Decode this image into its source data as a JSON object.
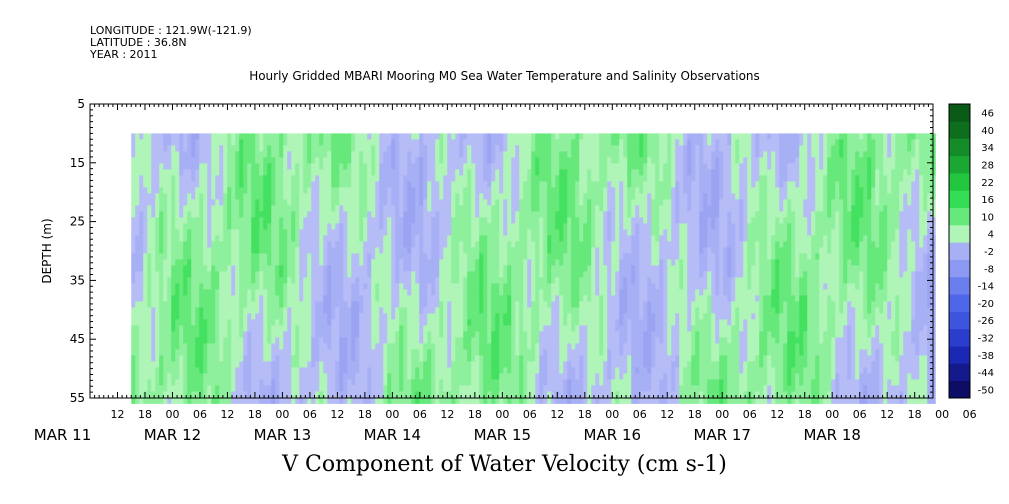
{
  "header": {
    "longitude_label": "LONGITUDE : 121.9W(-121.9)",
    "latitude_label": "LATITUDE : 36.8N",
    "year_label": "YEAR : 2011"
  },
  "chart_data": {
    "type": "heatmap",
    "title": "Hourly Gridded MBARI Mooring M0 Sea Water Temperature and Salinity Observations",
    "xlabel": "V Component of Water Velocity (cm s-1)",
    "ylabel": "DEPTH (m)",
    "x_hour_range": [
      6,
      190
    ],
    "data_start_hour": 15,
    "y_range": [
      5,
      55
    ],
    "y_ticks": [
      5,
      15,
      25,
      35,
      45,
      55
    ],
    "data_depth_range": [
      10,
      55
    ],
    "x_hour_ticks": [
      "12",
      "18",
      "00",
      "06",
      "12",
      "18",
      "00",
      "06",
      "12",
      "18",
      "00",
      "06",
      "12",
      "18",
      "00",
      "06",
      "12",
      "18",
      "00",
      "06",
      "12",
      "18",
      "00",
      "06",
      "12",
      "18",
      "00",
      "06",
      "12",
      "18",
      "00",
      "06"
    ],
    "x_day_labels": [
      {
        "label": "MAR 11",
        "hour": 0
      },
      {
        "label": "MAR 12",
        "hour": 24
      },
      {
        "label": "MAR 13",
        "hour": 48
      },
      {
        "label": "MAR 14",
        "hour": 72
      },
      {
        "label": "MAR 15",
        "hour": 96
      },
      {
        "label": "MAR 16",
        "hour": 120
      },
      {
        "label": "MAR 17",
        "hour": 144
      },
      {
        "label": "MAR 18",
        "hour": 168
      }
    ],
    "colorbar": {
      "levels": [
        -50,
        -44,
        -38,
        -32,
        -26,
        -20,
        -14,
        -8,
        -2,
        4,
        10,
        16,
        22,
        28,
        34,
        40,
        46
      ],
      "colors": [
        "#0d0d66",
        "#141a8c",
        "#1a28b3",
        "#2a3dcc",
        "#3d55dd",
        "#5066e8",
        "#6b7eee",
        "#8c99f2",
        "#a8b0f5",
        "#b0f5b8",
        "#66e87a",
        "#33dd55",
        "#22c63f",
        "#1aa833",
        "#148c28",
        "#0d6e1e",
        "#0a5a18"
      ],
      "labels": [
        "46",
        "40",
        "34",
        "28",
        "22",
        "16",
        "10",
        "4",
        "-2",
        "-8",
        "-14",
        "-20",
        "-26",
        "-32",
        "-38",
        "-44",
        "-50"
      ]
    }
  }
}
